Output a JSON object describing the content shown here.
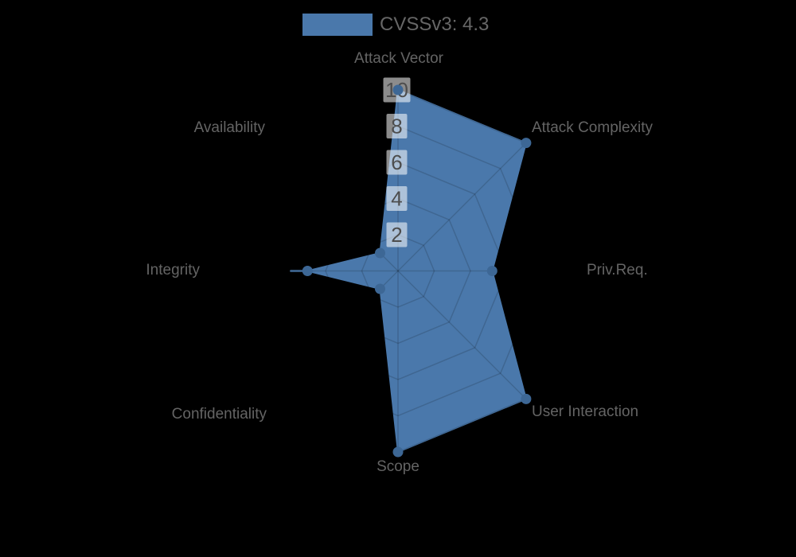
{
  "background": "#000000",
  "legend": {
    "label": "CVSSv3: 4.3",
    "swatch_color": "#4a78ab"
  },
  "chart_data": {
    "type": "radar",
    "title": "CVSSv3: 4.3",
    "categories": [
      "Attack Vector",
      "Attack Complexity",
      "Priv.Req.",
      "User Interaction",
      "Scope",
      "Confidentiality",
      "Integrity",
      "Availability"
    ],
    "series": [
      {
        "name": "CVSSv3: 4.3",
        "color": "#4a78ab",
        "marker_color": "#3d6795",
        "values": [
          10,
          10,
          5.2,
          10,
          10,
          1.4,
          5,
          1.4
        ]
      }
    ],
    "radial_ticks": [
      2,
      4,
      6,
      8,
      10
    ],
    "axis_range": [
      0,
      10
    ],
    "grid_shape": "polygon",
    "start_axis": "top",
    "direction": "clockwise",
    "legend_position": "top-center",
    "grid_line_color": "rgba(0,0,0,0.15)",
    "tick_label_bg": "rgba(255,255,255,0.55)",
    "tick_label_color": "#4d4d4d",
    "axis_label_color": "#646464"
  }
}
